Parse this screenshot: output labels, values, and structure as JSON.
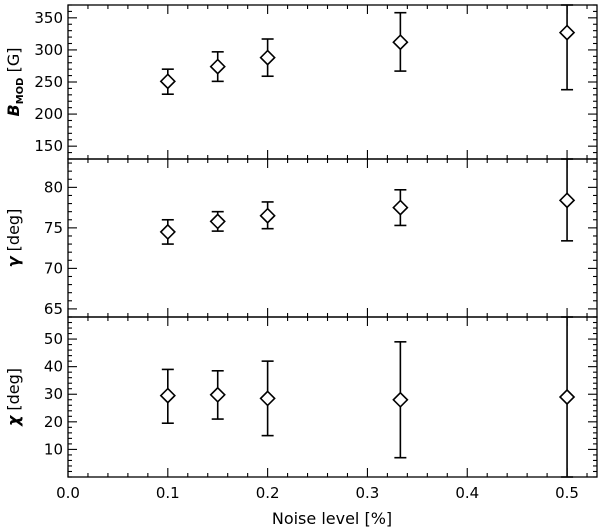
{
  "chart_data": {
    "type": "scatter",
    "x_axis": {
      "label": "Noise level [%]",
      "range": [
        0.0,
        0.53
      ],
      "ticks": [
        0.0,
        0.1,
        0.2,
        0.3,
        0.4,
        0.5
      ],
      "tick_labels": [
        "0.0",
        "0.1",
        "0.2",
        "0.3",
        "0.4",
        "0.5"
      ]
    },
    "panels": [
      {
        "ylabel_main": "B",
        "ylabel_sub": "MOD",
        "ylabel_unit": " [G]",
        "ylim": [
          130,
          370
        ],
        "yticks": [
          150,
          200,
          250,
          300,
          350
        ],
        "ytick_labels": [
          "150",
          "200",
          "250",
          "300",
          "350"
        ],
        "x": [
          0.1,
          0.15,
          0.2,
          0.333,
          0.5
        ],
        "y": [
          251,
          274,
          288,
          312,
          327
        ],
        "y_err_low": [
          231,
          251,
          259,
          267,
          238
        ],
        "y_err_high": [
          270,
          297,
          317,
          358,
          370
        ]
      },
      {
        "ylabel_main": "γ",
        "ylabel_sub": "",
        "ylabel_unit": " [deg]",
        "ylim": [
          64,
          83.5
        ],
        "yticks": [
          65,
          70,
          75,
          80
        ],
        "ytick_labels": [
          "65",
          "70",
          "75",
          "80"
        ],
        "x": [
          0.1,
          0.15,
          0.2,
          0.333,
          0.5
        ],
        "y": [
          74.5,
          75.8,
          76.5,
          77.5,
          78.4
        ],
        "y_err_low": [
          73.0,
          74.6,
          74.9,
          75.3,
          73.4
        ],
        "y_err_high": [
          76.0,
          77.0,
          78.2,
          79.7,
          83.5
        ]
      },
      {
        "ylabel_main": "χ",
        "ylabel_sub": "",
        "ylabel_unit": " [deg]",
        "ylim": [
          0,
          58
        ],
        "yticks": [
          10,
          20,
          30,
          40,
          50
        ],
        "ytick_labels": [
          "10",
          "20",
          "30",
          "40",
          "50"
        ],
        "x": [
          0.1,
          0.15,
          0.2,
          0.333,
          0.5
        ],
        "y": [
          29.5,
          29.8,
          28.5,
          28.0,
          29.0
        ],
        "y_err_low": [
          19.5,
          21.0,
          15.0,
          7.0,
          0
        ],
        "y_err_high": [
          39.0,
          38.5,
          42.0,
          49.0,
          58
        ]
      }
    ]
  }
}
